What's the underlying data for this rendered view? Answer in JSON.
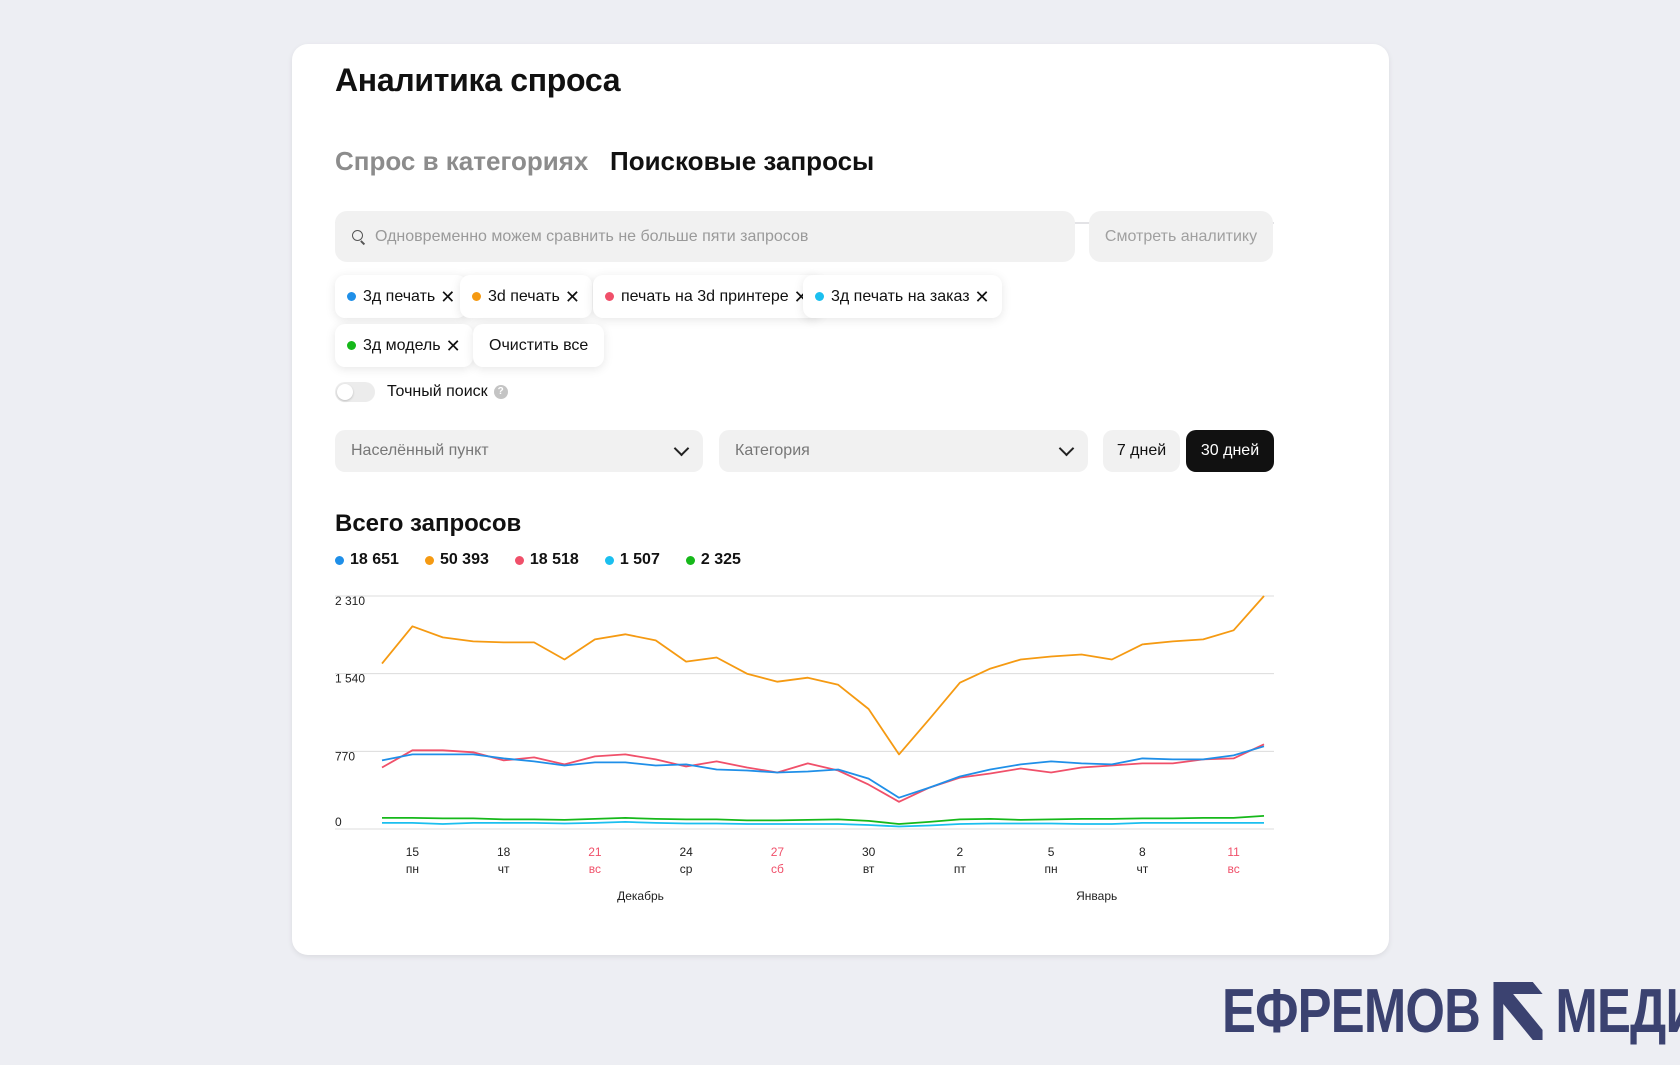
{
  "title": "Аналитика спроса",
  "tabs": [
    {
      "label": "Спрос в категориях",
      "active": false
    },
    {
      "label": "Поисковые запросы",
      "active": true
    }
  ],
  "search": {
    "placeholder": "Одновременно можем сравнить не больше пяти запросов",
    "button_label": "Смотреть аналитику"
  },
  "chips": [
    {
      "label": "3д печать",
      "color": "#1f8fe8"
    },
    {
      "label": "3d печать",
      "color": "#f59a12"
    },
    {
      "label": "печать на 3d принтере",
      "color": "#f0506a"
    },
    {
      "label": "3д печать на заказ",
      "color": "#1bbfef"
    },
    {
      "label": "3д модель",
      "color": "#16b81a"
    }
  ],
  "clear_all_label": "Очистить все",
  "exact_search": {
    "label": "Точный поиск",
    "enabled": false,
    "help": "?"
  },
  "filters": {
    "city_placeholder": "Населённый пункт",
    "category_placeholder": "Категория"
  },
  "periods": {
    "p7": "7 дней",
    "p30": "30 дней",
    "selected": "30 дней"
  },
  "chart_section_title": "Всего запросов",
  "logo": {
    "left": "ЕФРЕМОВ",
    "right": "МЕДИА"
  },
  "chart_data": {
    "type": "line",
    "title": "Всего запросов",
    "ylim": [
      0,
      2310
    ],
    "yticks": [
      0,
      770,
      1540,
      2310
    ],
    "ytick_labels": [
      "0",
      "770",
      "1 540",
      "2 310"
    ],
    "grid": true,
    "legend_position": "top-left",
    "x_labels": [
      {
        "index": 1,
        "day": "15",
        "weekday": "пн",
        "weekend": false
      },
      {
        "index": 4,
        "day": "18",
        "weekday": "чт",
        "weekend": false
      },
      {
        "index": 7,
        "day": "21",
        "weekday": "вс",
        "weekend": true
      },
      {
        "index": 10,
        "day": "24",
        "weekday": "ср",
        "weekend": false
      },
      {
        "index": 13,
        "day": "27",
        "weekday": "сб",
        "weekend": true
      },
      {
        "index": 16,
        "day": "30",
        "weekday": "вт",
        "weekend": false
      },
      {
        "index": 19,
        "day": "2",
        "weekday": "пт",
        "weekend": false
      },
      {
        "index": 22,
        "day": "5",
        "weekday": "пн",
        "weekend": false
      },
      {
        "index": 25,
        "day": "8",
        "weekday": "чт",
        "weekend": false
      },
      {
        "index": 28,
        "day": "11",
        "weekday": "вс",
        "weekend": true
      }
    ],
    "month_labels": [
      {
        "label": "Декабрь",
        "index": 8.5
      },
      {
        "label": "Январь",
        "index": 23.5
      }
    ],
    "series": [
      {
        "color": "#f59a12",
        "total": "50 393",
        "values": [
          1640,
          2010,
          1900,
          1860,
          1850,
          1850,
          1680,
          1880,
          1930,
          1870,
          1660,
          1700,
          1540,
          1460,
          1500,
          1430,
          1190,
          740,
          1090,
          1450,
          1590,
          1680,
          1710,
          1730,
          1680,
          1830,
          1860,
          1880,
          1970,
          2310
        ]
      },
      {
        "color": "#1f8fe8",
        "total": "18 651",
        "values": [
          680,
          740,
          740,
          740,
          700,
          670,
          630,
          660,
          660,
          630,
          640,
          590,
          580,
          560,
          570,
          590,
          500,
          310,
          410,
          520,
          590,
          640,
          670,
          650,
          640,
          700,
          690,
          690,
          730,
          820
        ]
      },
      {
        "color": "#f0506a",
        "total": "18 518",
        "values": [
          610,
          780,
          780,
          760,
          680,
          710,
          640,
          720,
          740,
          690,
          620,
          670,
          610,
          560,
          650,
          580,
          440,
          270,
          410,
          510,
          550,
          600,
          560,
          610,
          630,
          650,
          650,
          690,
          700,
          840
        ]
      },
      {
        "color": "#16b81a",
        "total": "2 325",
        "values": [
          110,
          110,
          105,
          105,
          95,
          95,
          90,
          100,
          110,
          100,
          95,
          95,
          85,
          85,
          90,
          95,
          80,
          50,
          70,
          95,
          100,
          90,
          95,
          100,
          100,
          105,
          105,
          110,
          110,
          130
        ]
      },
      {
        "color": "#1bbfef",
        "total": "1 507",
        "values": [
          60,
          60,
          50,
          60,
          60,
          60,
          55,
          60,
          70,
          60,
          55,
          55,
          50,
          50,
          50,
          50,
          40,
          25,
          35,
          50,
          55,
          55,
          55,
          50,
          50,
          60,
          60,
          60,
          60,
          60
        ]
      }
    ]
  }
}
